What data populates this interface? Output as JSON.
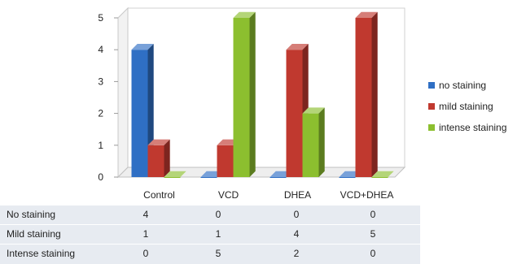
{
  "chart_data": {
    "type": "bar",
    "title": "",
    "xlabel": "",
    "ylabel": "",
    "ylim": [
      0,
      5
    ],
    "yticks": [
      "0",
      "1",
      "2",
      "3",
      "4",
      "5"
    ],
    "categories": [
      "Control",
      "VCD",
      "DHEA",
      "VCD+DHEA"
    ],
    "series": [
      {
        "name": "no staining",
        "color": "#2f6fc4",
        "values": [
          4,
          0,
          0,
          0
        ]
      },
      {
        "name": "mild staining",
        "color": "#c0392f",
        "values": [
          1,
          1,
          4,
          5
        ]
      },
      {
        "name": "intense staining",
        "color": "#8cbf2f",
        "values": [
          0,
          5,
          2,
          0
        ]
      }
    ],
    "legend_position": "right",
    "grid": false,
    "style": "3d-column",
    "data_table": {
      "rows": [
        {
          "label": "No staining",
          "values": [
            "4",
            "0",
            "0",
            "0"
          ]
        },
        {
          "label": "Mild staining",
          "values": [
            "1",
            "1",
            "4",
            "5"
          ]
        },
        {
          "label": "Intense staining",
          "values": [
            "0",
            "5",
            "2",
            "0"
          ]
        }
      ]
    }
  }
}
